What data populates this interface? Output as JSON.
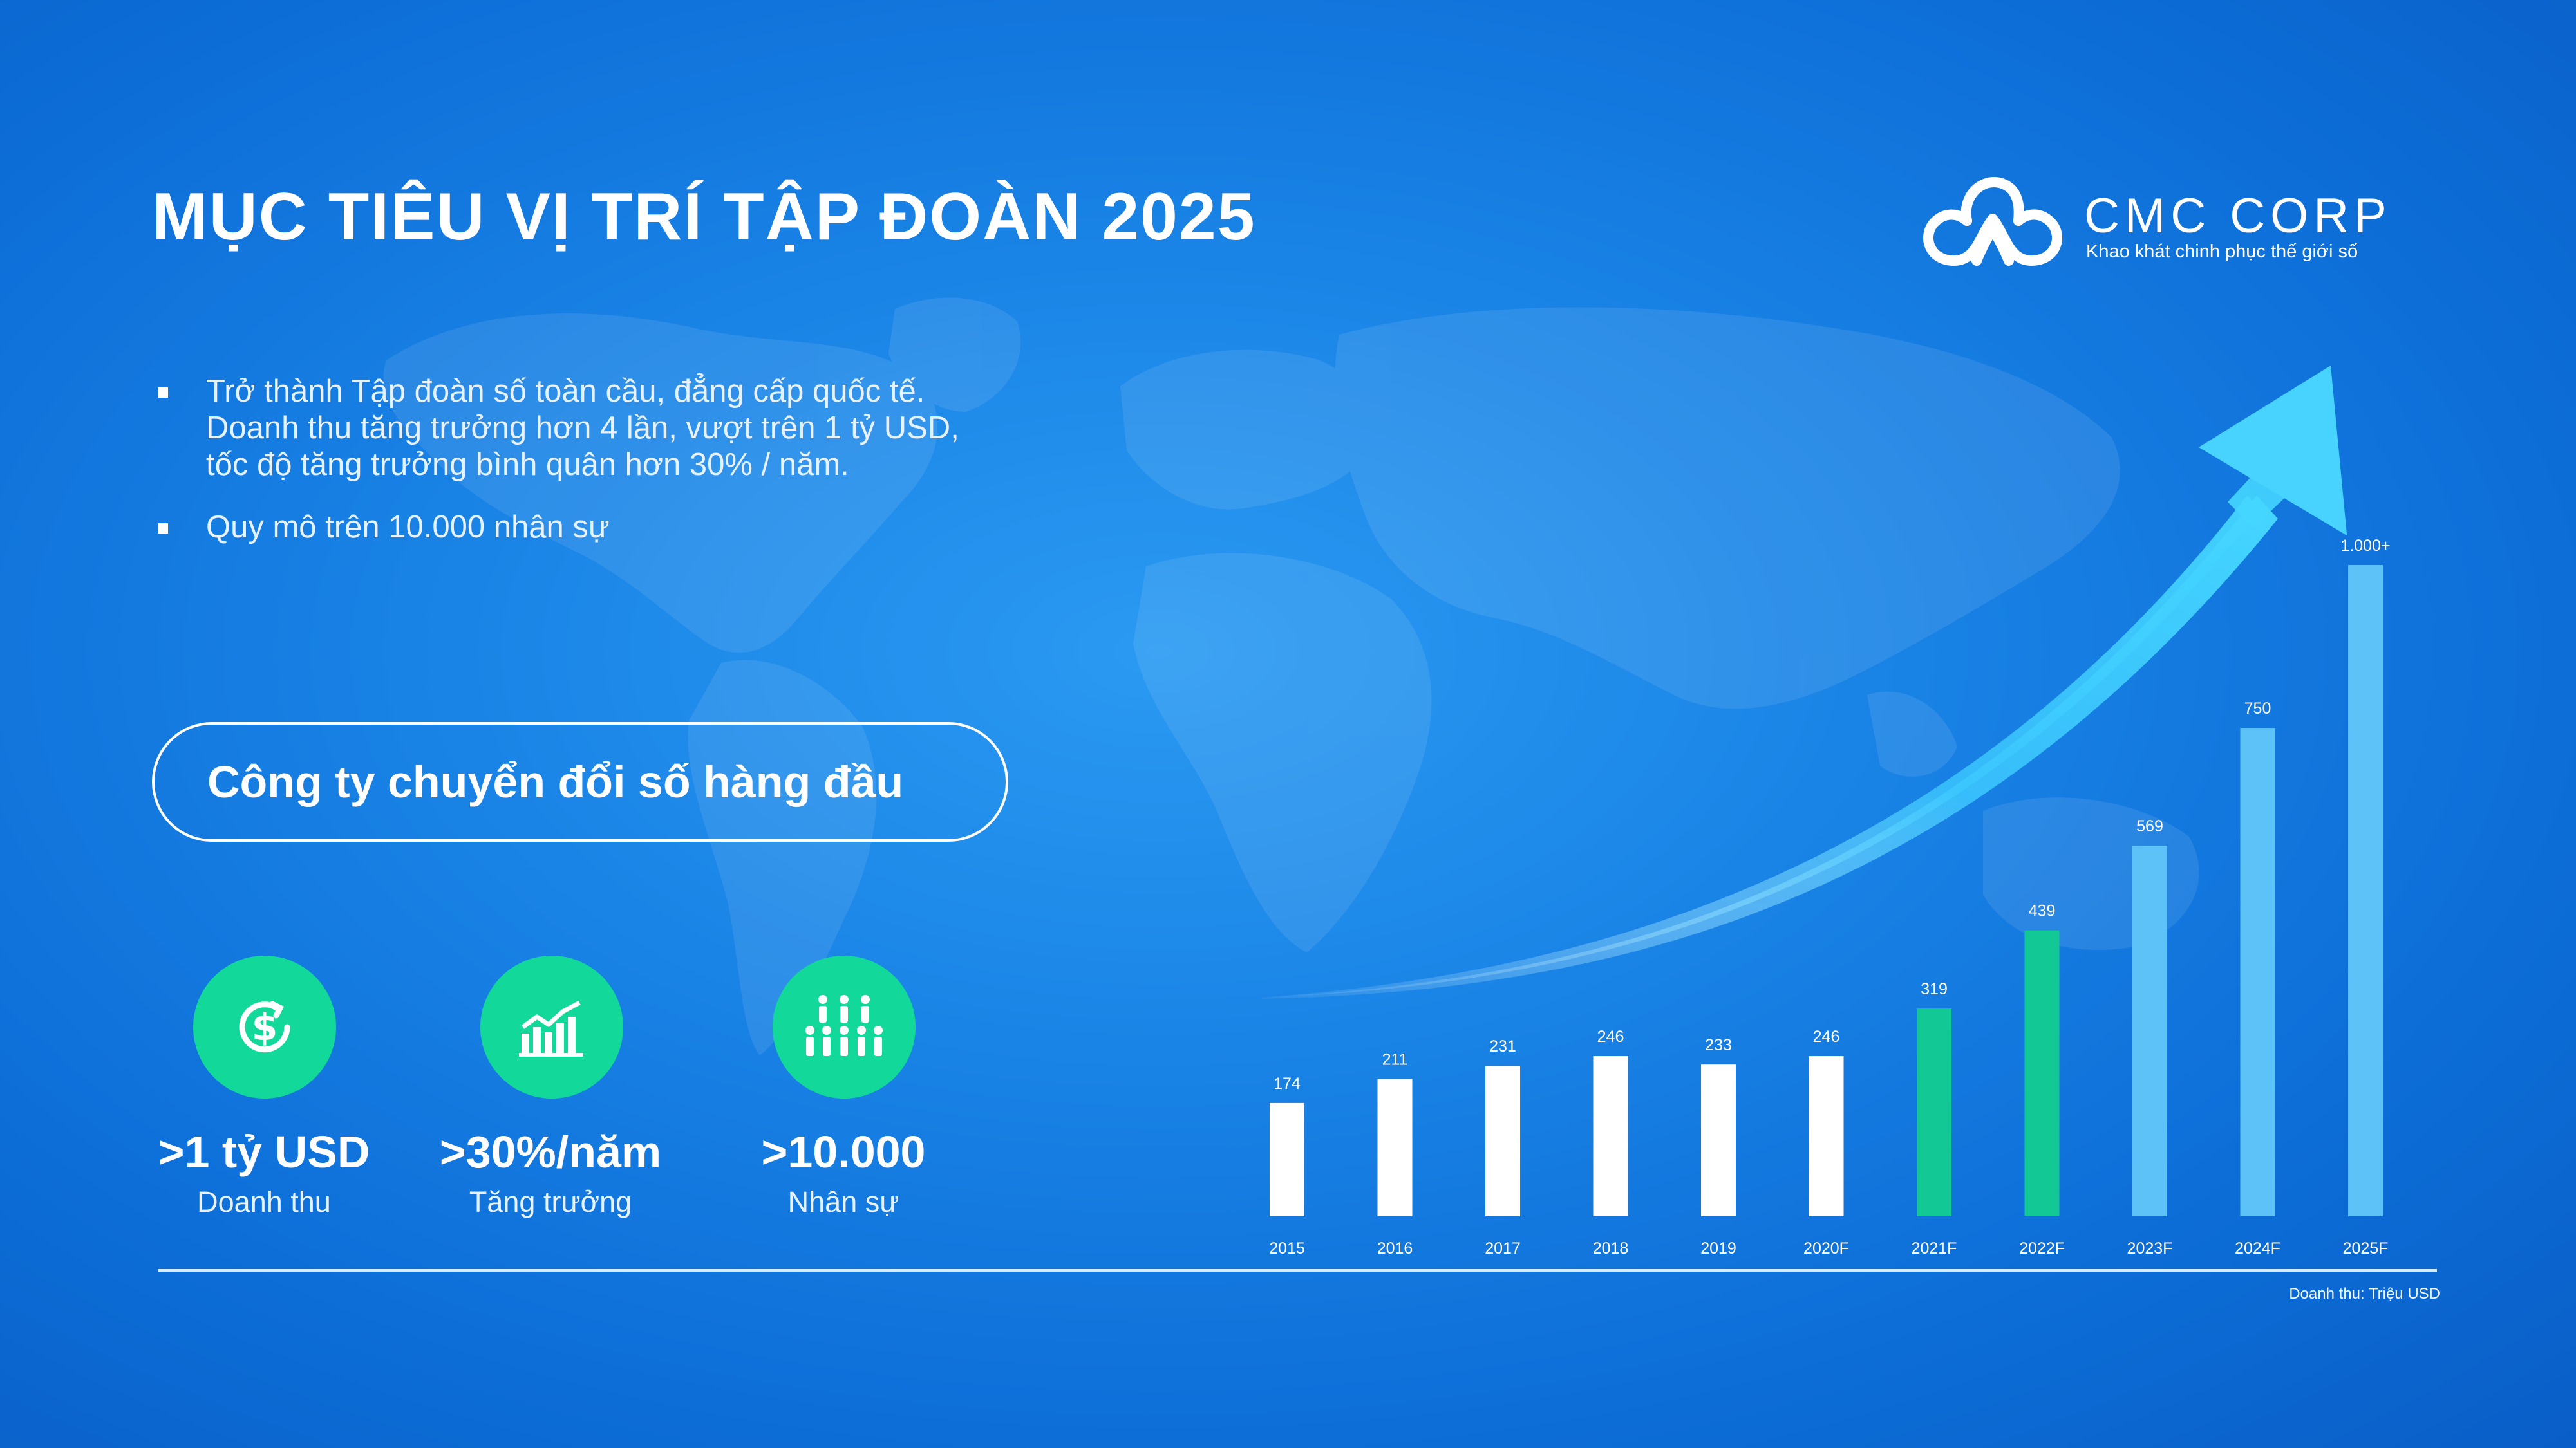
{
  "title": "MỤC TIÊU VỊ TRÍ TẬP ĐOÀN 2025",
  "logo": {
    "name": "CMC CORP",
    "tagline": "Khao khát chinh phục thế giới số"
  },
  "bullets": [
    {
      "lines": [
        "Trở thành Tập đoàn số toàn cầu, đẳng cấp quốc tế.",
        "Doanh thu tăng trưởng hơn 4 lần, vượt trên 1 tỷ USD,",
        "tốc độ tăng trưởng bình quân hơn 30% / năm."
      ]
    },
    {
      "lines": [
        "Quy mô trên 10.000 nhân sự"
      ]
    }
  ],
  "highlight": "Công ty chuyển đổi số hàng đầu",
  "stats": [
    {
      "value": ">1 tỷ USD",
      "label": "Doanh thu",
      "icon": "dollar-refresh-icon"
    },
    {
      "value": ">30%/năm",
      "label": "Tăng trưởng",
      "icon": "growth-chart-icon"
    },
    {
      "value": ">10.000",
      "label": "Nhân sự",
      "icon": "people-group-icon"
    }
  ],
  "colors": {
    "actual": "#ffffff",
    "forecast_near": "#12c894",
    "forecast_far": "#5cc2f7",
    "icon_circle": "#12d89a"
  },
  "chart_data": {
    "type": "bar",
    "categories": [
      "2015",
      "2016",
      "2017",
      "2018",
      "2019",
      "2020F",
      "2021F",
      "2022F",
      "2023F",
      "2024F",
      "2025F"
    ],
    "values": [
      174,
      211,
      231,
      246,
      233,
      246,
      319,
      439,
      569,
      750,
      1000
    ],
    "labels": [
      "174",
      "211",
      "231",
      "246",
      "233",
      "246",
      "319",
      "439",
      "569",
      "750",
      "1.000+"
    ],
    "groups": [
      "actual",
      "actual",
      "actual",
      "actual",
      "actual",
      "actual",
      "forecast_near",
      "forecast_near",
      "forecast_far",
      "forecast_far",
      "forecast_far"
    ],
    "ylim": [
      0,
      1000
    ],
    "unit_note": "Doanh thu: Triệu USD",
    "grid": false
  }
}
